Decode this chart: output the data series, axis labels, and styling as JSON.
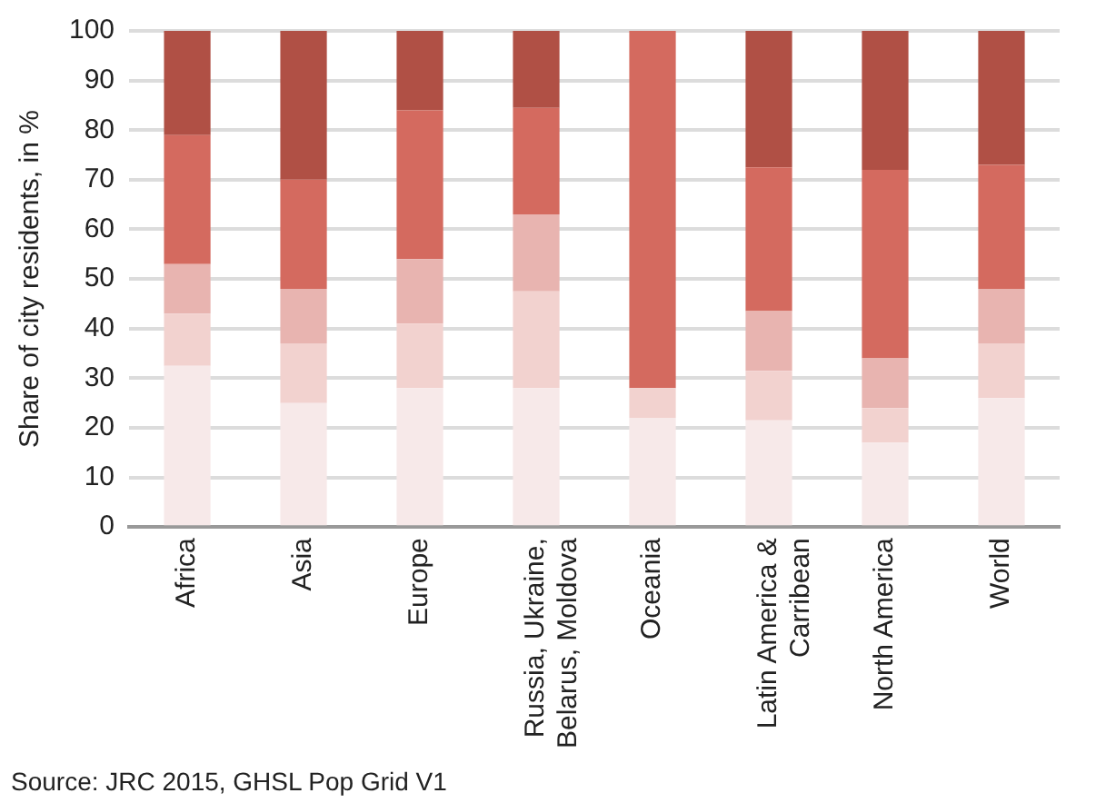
{
  "chart_data": {
    "type": "bar",
    "stacked": true,
    "ylabel": "Share of city residents, in %",
    "categories": [
      "Africa",
      "Asia",
      "Europe",
      "Russia, Ukraine, Belarus, Moldova",
      "Oceania",
      "Latin America & Carribean",
      "North America",
      "World"
    ],
    "series": [
      {
        "color": "#f7e9e9",
        "values": [
          32.5,
          25,
          28,
          28,
          22,
          21.5,
          17,
          26
        ]
      },
      {
        "color": "#f2d2cf",
        "values": [
          10.5,
          12,
          13,
          19.5,
          6,
          10,
          7,
          11
        ]
      },
      {
        "color": "#e8b4b0",
        "values": [
          10,
          11,
          13,
          15.5,
          0,
          12,
          10,
          11
        ]
      },
      {
        "color": "#d46a5f",
        "values": [
          26,
          22,
          30,
          21.5,
          72,
          29,
          38,
          25
        ]
      },
      {
        "color": "#b05045",
        "values": [
          21,
          30,
          16,
          15.5,
          0,
          27.5,
          28,
          27
        ]
      }
    ],
    "ylim": [
      0,
      100
    ],
    "yticks": [
      0,
      10,
      20,
      30,
      40,
      50,
      60,
      70,
      80,
      90,
      100
    ],
    "grid": "y",
    "legend": false,
    "annotations": [
      "Source: JRC 2015, GHSL Pop Grid V1"
    ]
  }
}
